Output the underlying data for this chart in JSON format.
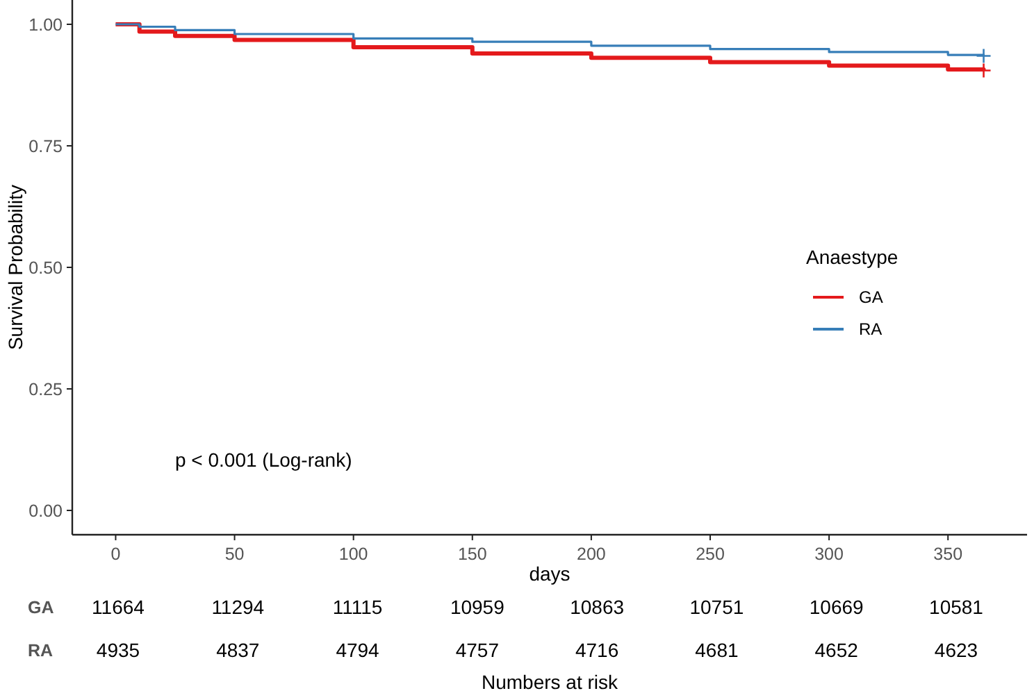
{
  "chart_data": [
    {
      "type": "step",
      "xlabel": "days",
      "ylabel": "Survival Probability",
      "legend_title": "Anaestype",
      "legend": "right",
      "grid": false,
      "xlim": [
        -18.25,
        383.25
      ],
      "xticks": [
        0,
        50,
        100,
        150,
        200,
        250,
        300,
        350
      ],
      "ylim": [
        -0.05,
        1.05
      ],
      "yticks": [
        {
          "value": 0,
          "label": "0.00"
        },
        {
          "value": 0.25,
          "label": "0.25"
        },
        {
          "value": 0.5,
          "label": "0.50"
        },
        {
          "value": 0.75,
          "label": "0.75"
        },
        {
          "value": 1,
          "label": "1.00"
        }
      ],
      "annotations": [
        "p < 0.001 (Log-rank)"
      ],
      "series": [
        {
          "name": "GA",
          "color": "#e41a1c",
          "x": [
            0,
            10,
            25,
            50,
            100,
            150,
            200,
            250,
            300,
            350,
            365
          ],
          "values": [
            1,
            0.985,
            0.976,
            0.968,
            0.953,
            0.94,
            0.931,
            0.922,
            0.915,
            0.907,
            0.905
          ]
        },
        {
          "name": "RA",
          "color": "#377eb8",
          "x": [
            0,
            10,
            25,
            50,
            100,
            150,
            200,
            250,
            300,
            350,
            365
          ],
          "values": [
            1,
            0.995,
            0.988,
            0.98,
            0.971,
            0.964,
            0.956,
            0.949,
            0.943,
            0.937,
            0.935
          ]
        },
        {
          "type": "scatter",
          "marker": "cross",
          "color": "#e41a1c",
          "x": [
            365
          ],
          "values": [
            0.905
          ]
        },
        {
          "type": "scatter",
          "marker": "cross",
          "color": "#377eb8",
          "x": [
            365
          ],
          "values": [
            0.935
          ]
        }
      ]
    },
    {
      "type": "heatmap",
      "xlabel": "Numbers at risk",
      "data_labels": true,
      "categories": [
        null,
        null,
        null,
        null,
        null,
        null,
        null,
        null
      ],
      "y_categories": [
        "GA",
        "RA"
      ],
      "cells": [
        [
          11664,
          11294,
          11115,
          10959,
          10863,
          10751,
          10669,
          10581
        ],
        [
          4935,
          4837,
          4794,
          4757,
          4716,
          4681,
          4652,
          4623
        ]
      ]
    }
  ]
}
